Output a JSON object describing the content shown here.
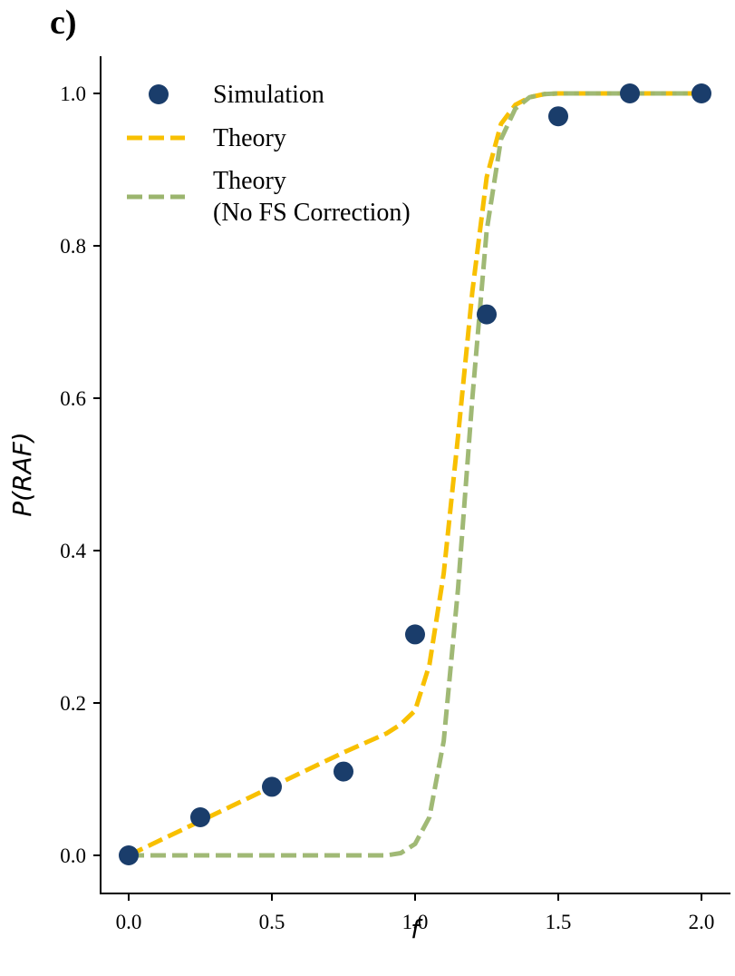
{
  "panel_label": "c)",
  "chart_data": {
    "type": "line",
    "xlabel": "f",
    "ylabel": "P(RAF)",
    "xlim": [
      -0.1,
      2.1
    ],
    "ylim": [
      -0.05,
      1.05
    ],
    "xticks": [
      "0.0",
      "0.5",
      "1.0",
      "1.5",
      "2.0"
    ],
    "yticks": [
      "0.0",
      "0.2",
      "0.4",
      "0.6",
      "0.8",
      "1.0"
    ],
    "grid": false,
    "legend_position": "top-left",
    "series": [
      {
        "name": "Simulation",
        "kind": "scatter",
        "color": "#1a3d6b",
        "x": [
          0.0,
          0.25,
          0.5,
          0.75,
          1.0,
          1.25,
          1.5,
          1.75,
          2.0
        ],
        "y": [
          0.0,
          0.05,
          0.09,
          0.11,
          0.29,
          0.71,
          0.97,
          1.0,
          1.0
        ]
      },
      {
        "name": "Theory",
        "kind": "dashed-line",
        "color": "#f8c000",
        "x": [
          0.0,
          0.25,
          0.5,
          0.75,
          0.9,
          0.95,
          1.0,
          1.05,
          1.1,
          1.15,
          1.2,
          1.25,
          1.3,
          1.35,
          1.4,
          1.45,
          1.5,
          1.75,
          2.0
        ],
        "y": [
          0.0,
          0.045,
          0.09,
          0.135,
          0.16,
          0.172,
          0.19,
          0.25,
          0.37,
          0.55,
          0.74,
          0.89,
          0.96,
          0.985,
          0.995,
          0.999,
          1.0,
          1.0,
          1.0
        ]
      },
      {
        "name": "Theory\n(No FS Correction)",
        "label_lines": [
          "Theory",
          "(No FS Correction)"
        ],
        "kind": "dashed-line",
        "color": "#9bb56e",
        "x": [
          0.0,
          0.25,
          0.5,
          0.75,
          0.9,
          0.95,
          1.0,
          1.05,
          1.1,
          1.15,
          1.2,
          1.25,
          1.3,
          1.35,
          1.4,
          1.45,
          1.5,
          1.75,
          2.0
        ],
        "y": [
          0.0,
          0.0,
          0.0,
          0.0,
          0.0,
          0.003,
          0.015,
          0.05,
          0.15,
          0.35,
          0.6,
          0.82,
          0.94,
          0.98,
          0.995,
          0.999,
          1.0,
          1.0,
          1.0
        ]
      }
    ]
  }
}
